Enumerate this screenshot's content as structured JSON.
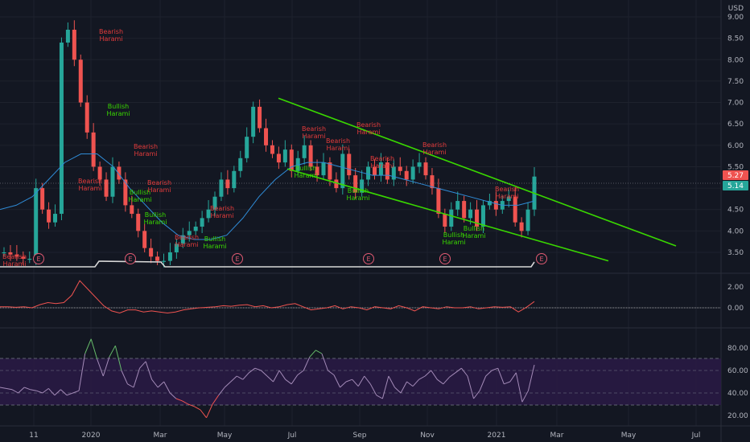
{
  "currency": "USD",
  "colors": {
    "background": "#131722",
    "grid": "#1e222d",
    "up": "#26a69a",
    "down": "#ef5350",
    "trendline": "#39d700",
    "ma": "#2f8bd6",
    "macd": "#ef5350",
    "rsi_band": "#3b1f5c",
    "price_badge_red": "#ef5350",
    "price_badge_green": "#26a69a",
    "bearish": "#e23b3b",
    "bullish": "#39d700"
  },
  "price_axis": {
    "ticks": [
      "9.00",
      "8.50",
      "8.00",
      "7.50",
      "7.00",
      "6.50",
      "6.00",
      "5.50",
      "5.00",
      "4.50",
      "4.00",
      "3.50"
    ]
  },
  "price_badges": {
    "last": "5.27",
    "prev": "5.14"
  },
  "macd_axis": {
    "ticks": [
      "2.00",
      "0.00"
    ]
  },
  "rsi_axis": {
    "ticks": [
      "80.00",
      "60.00",
      "40.00",
      "20.00"
    ]
  },
  "time_axis": {
    "labels": [
      "11",
      "2020",
      "Mar",
      "May",
      "Jul",
      "Sep",
      "Nov",
      "2021",
      "Mar",
      "May",
      "Jul"
    ]
  },
  "earnings_marker": "E",
  "patterns": [
    {
      "line1": "Bearish",
      "line2": "Harami",
      "kind": "bearish"
    },
    {
      "line1": "Bullish",
      "line2": "Harami",
      "kind": "bullish"
    }
  ],
  "chart_data": {
    "type": "candlestick",
    "title": "",
    "x_domain": [
      "2019-11",
      "2021-07"
    ],
    "y_range": [
      3.3,
      9.2
    ],
    "series": [
      {
        "values": [
          3.5,
          3.45,
          3.4,
          3.35,
          3.35,
          5.0,
          4.5,
          4.2,
          4.4,
          8.4,
          8.7,
          8.0,
          7.0,
          6.3,
          5.5,
          5.2,
          4.8,
          5.5,
          5.2,
          4.6,
          4.4,
          4.0,
          3.6,
          3.4,
          3.3,
          3.3,
          3.5,
          3.7,
          3.9,
          4.0,
          4.1,
          4.3,
          4.5,
          4.8,
          5.2,
          5.0,
          5.4,
          5.7,
          6.2,
          6.9,
          6.4,
          6.0,
          5.8,
          5.6,
          5.9,
          5.4,
          5.7,
          6.0,
          5.5,
          5.3,
          5.6,
          5.2,
          5.0,
          5.8,
          5.3,
          4.9,
          5.2,
          5.5,
          5.3,
          5.6,
          5.2,
          5.5,
          5.4,
          5.2,
          5.5,
          5.6,
          5.3,
          5.0,
          4.4,
          4.1,
          4.5,
          4.7,
          4.3,
          4.5,
          4.1,
          4.6,
          4.7,
          4.5,
          4.7,
          4.8,
          4.2,
          4.0,
          4.5,
          5.27
        ]
      }
    ],
    "moving_average": [
      4.5,
      4.6,
      4.8,
      5.2,
      5.6,
      5.8,
      5.8,
      5.5,
      5.0,
      4.6,
      4.2,
      3.9,
      3.8,
      3.8,
      3.9,
      4.3,
      4.8,
      5.2,
      5.5,
      5.6,
      5.6,
      5.5,
      5.4,
      5.3,
      5.3,
      5.2,
      5.1,
      5.0,
      4.9,
      4.8,
      4.7,
      4.6,
      4.6,
      4.7
    ],
    "trendlines": [
      {
        "from": {
          "date": "2020-06-25",
          "price": 7.1
        },
        "to": {
          "date": "2021-04-25",
          "price": 3.65
        }
      },
      {
        "from": {
          "date": "2020-07-01",
          "price": 5.45
        },
        "to": {
          "date": "2021-04-05",
          "price": 3.3
        }
      }
    ],
    "macd": {
      "zero_line": 0.0,
      "ylim": [
        -0.8,
        3.0
      ],
      "values": [
        0.1,
        0.1,
        0.05,
        0.1,
        0.0,
        0.3,
        0.5,
        0.4,
        0.5,
        1.2,
        2.6,
        1.8,
        1.0,
        0.2,
        -0.3,
        -0.5,
        -0.2,
        -0.2,
        -0.4,
        -0.3,
        -0.4,
        -0.5,
        -0.4,
        -0.2,
        -0.1,
        0.0,
        0.05,
        0.1,
        0.2,
        0.15,
        0.25,
        0.3,
        0.1,
        0.2,
        0.0,
        0.1,
        0.3,
        0.4,
        0.1,
        -0.2,
        -0.1,
        0.0,
        0.2,
        -0.1,
        0.1,
        0.0,
        -0.2,
        0.1,
        0.0,
        -0.1,
        0.2,
        0.0,
        -0.3,
        0.1,
        0.0,
        -0.1,
        0.1,
        0.0,
        0.0,
        0.1,
        -0.1,
        0.0,
        0.1,
        0.05,
        0.1,
        -0.4,
        0.05,
        0.6
      ]
    },
    "rsi": {
      "ylim": [
        15,
        90
      ],
      "levels": [
        70,
        60,
        50,
        40,
        30
      ],
      "values": [
        45,
        44,
        43,
        40,
        45,
        43,
        42,
        40,
        44,
        38,
        43,
        38,
        40,
        42,
        75,
        88,
        70,
        55,
        72,
        82,
        60,
        48,
        45,
        62,
        68,
        52,
        45,
        50,
        40,
        35,
        33,
        30,
        28,
        25,
        18,
        30,
        38,
        45,
        50,
        55,
        52,
        58,
        62,
        60,
        55,
        50,
        60,
        52,
        48,
        56,
        60,
        72,
        78,
        75,
        60,
        56,
        45,
        50,
        52,
        46,
        55,
        48,
        38,
        35,
        55,
        45,
        40,
        50,
        46,
        52,
        55,
        60,
        52,
        48,
        54,
        58,
        62,
        55,
        35,
        42,
        55,
        60,
        62,
        48,
        50,
        58,
        32,
        42,
        65
      ]
    }
  }
}
